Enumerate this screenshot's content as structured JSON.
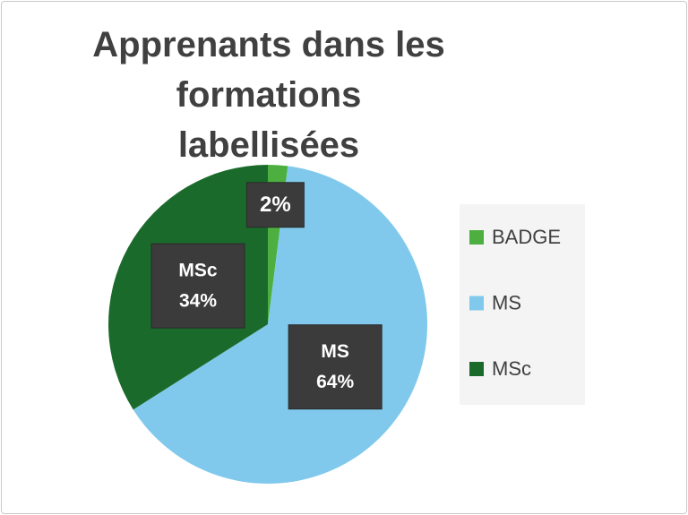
{
  "chart_data": {
    "type": "pie",
    "title": "Apprenants dans les formations labellisées",
    "categories": [
      "BADGE",
      "MS",
      "MSc"
    ],
    "values": [
      2,
      64,
      34
    ],
    "value_labels": [
      "2%",
      "64%",
      "34%"
    ],
    "colors": [
      "#4caf3f",
      "#80c9ec",
      "#1a6b2b"
    ],
    "legend": "right"
  }
}
